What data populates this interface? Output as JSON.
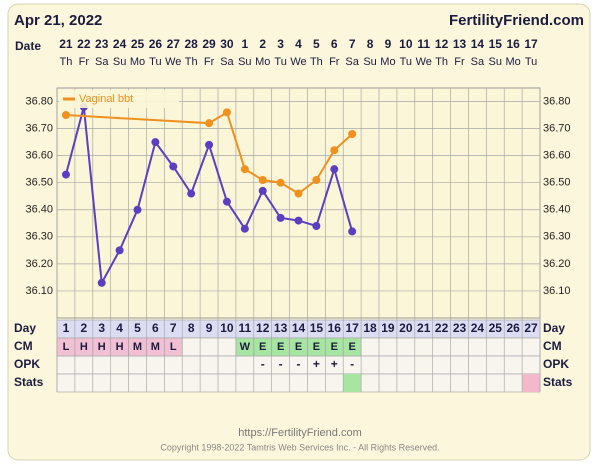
{
  "header": {
    "date": "Apr 21, 2022",
    "site": "FertilityFriend.com"
  },
  "chart_data": {
    "type": "line",
    "date_label": "Date",
    "dates": [
      "21",
      "22",
      "23",
      "24",
      "25",
      "26",
      "27",
      "28",
      "29",
      "30",
      "1",
      "2",
      "3",
      "4",
      "5",
      "6",
      "7",
      "8",
      "9",
      "10",
      "11",
      "12",
      "13",
      "14",
      "15",
      "16",
      "17"
    ],
    "weekdays": [
      "Th",
      "Fr",
      "Sa",
      "Su",
      "Mo",
      "Tu",
      "We",
      "Th",
      "Fr",
      "Sa",
      "Su",
      "Mo",
      "Tu",
      "We",
      "Th",
      "Fr",
      "Sa",
      "Su",
      "Mo",
      "Tu",
      "We",
      "Th",
      "Fr",
      "Sa",
      "Su",
      "Mo",
      "Tu"
    ],
    "ylim": [
      36.0,
      36.85
    ],
    "yticks": [
      {
        "value": 36.8,
        "label": "36.80"
      },
      {
        "value": 36.7,
        "label": "36.70"
      },
      {
        "value": 36.6,
        "label": "36.60"
      },
      {
        "value": 36.5,
        "label": "36.50"
      },
      {
        "value": 36.4,
        "label": "36.40"
      },
      {
        "value": 36.3,
        "label": "36.30"
      },
      {
        "value": 36.2,
        "label": "36.20"
      },
      {
        "value": 36.1,
        "label": "36.10"
      }
    ],
    "grid": true,
    "legend": "top-left",
    "series": [
      {
        "color": "#5a3fc0",
        "x": [
          1,
          2,
          3,
          4,
          5,
          6,
          7,
          8,
          9,
          10,
          11,
          12,
          13,
          14,
          15,
          16,
          17
        ],
        "values": [
          36.53,
          36.78,
          36.13,
          36.25,
          36.4,
          36.65,
          36.56,
          36.46,
          36.64,
          36.43,
          36.33,
          36.47,
          36.37,
          36.36,
          36.34,
          36.55,
          36.32
        ]
      },
      {
        "name": "Vaginal bbt",
        "color": "#f0901e",
        "x": [
          1,
          9,
          10,
          11,
          12,
          13,
          14,
          15,
          16,
          17
        ],
        "values": [
          36.75,
          36.72,
          36.76,
          36.55,
          36.51,
          36.5,
          36.46,
          36.51,
          36.62,
          36.68
        ]
      }
    ],
    "rows": {
      "labels": [
        "Day",
        "CM",
        "OPK",
        "Stats"
      ],
      "days": [
        1,
        2,
        3,
        4,
        5,
        6,
        7,
        8,
        9,
        10,
        11,
        12,
        13,
        14,
        15,
        16,
        17,
        18,
        19,
        20,
        21,
        22,
        23,
        24,
        25,
        26,
        27
      ],
      "cm": [
        "L",
        "H",
        "H",
        "H",
        "M",
        "M",
        "L",
        null,
        null,
        null,
        "W",
        "E",
        "E",
        "E",
        "E",
        "E",
        "E",
        null,
        null,
        null,
        null,
        null,
        null,
        null,
        null,
        null,
        null
      ],
      "opk": [
        null,
        null,
        null,
        null,
        null,
        null,
        null,
        null,
        null,
        null,
        null,
        "-",
        "-",
        "-",
        "+",
        "+",
        "-",
        null,
        null,
        null,
        null,
        null,
        null,
        null,
        null,
        null,
        null
      ]
    }
  },
  "footer": {
    "url": "https://FertilityFriend.com",
    "copyright": "Copyright 1998-2022 Tamtris Web Services Inc. - All Rights Reserved."
  }
}
